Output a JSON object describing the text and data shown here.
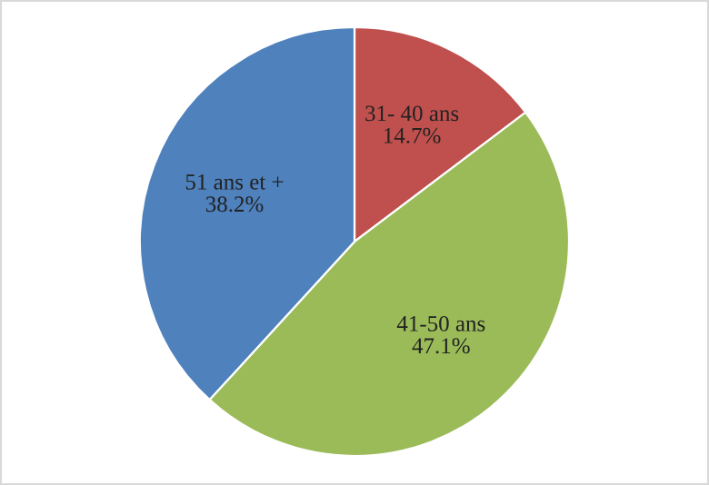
{
  "chart_data": {
    "type": "pie",
    "categories": [
      "31- 40 ans",
      "41-50 ans",
      "51 ans et +"
    ],
    "values": [
      14.7,
      47.1,
      38.2
    ],
    "colors": [
      "#c0504d",
      "#9bbb59",
      "#4f81bd"
    ],
    "value_labels": [
      "14.7%",
      "47.1%",
      "38.2%"
    ],
    "legend": false
  }
}
